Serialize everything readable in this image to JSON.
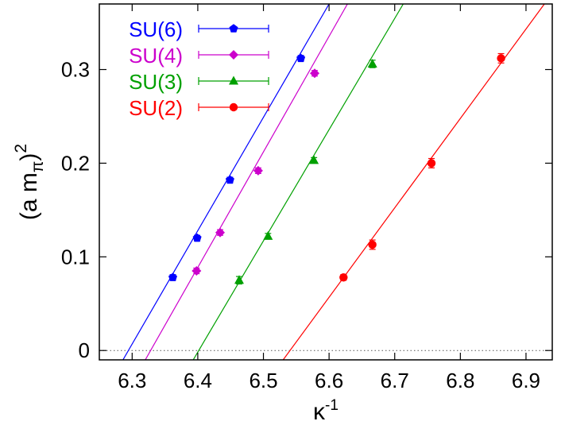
{
  "chart_data": {
    "type": "scatter",
    "xlabel": {
      "base": "κ",
      "sup": "-1"
    },
    "ylabel": {
      "pre": "(a m",
      "sub": "π",
      "post": ")",
      "sup": "2"
    },
    "xlim": [
      6.25,
      6.94
    ],
    "ylim": [
      -0.01,
      0.37
    ],
    "x_ticks": [
      6.3,
      6.4,
      6.5,
      6.6,
      6.7,
      6.8,
      6.9
    ],
    "x_tick_labels": [
      "6.3",
      "6.4",
      "6.5",
      "6.6",
      "6.7",
      "6.8",
      "6.9"
    ],
    "y_ticks": [
      0,
      0.1,
      0.2,
      0.3
    ],
    "y_tick_labels": [
      "0",
      "0.1",
      "0.2",
      "0.3"
    ],
    "zero_line": true,
    "legend_position": "top-left",
    "series": [
      {
        "name": "SU(6)",
        "color": "#0000ff",
        "marker": "pentagon",
        "x": [
          6.362,
          6.399,
          6.449,
          6.557
        ],
        "y": [
          0.078,
          0.12,
          0.182,
          0.312
        ],
        "yerr": [
          0.003,
          0.003,
          0.003,
          0.003
        ],
        "fit": {
          "x": [
            6.286,
            6.6
          ],
          "y": [
            -0.01,
            0.37
          ]
        }
      },
      {
        "name": "SU(4)",
        "color": "#cc00cc",
        "marker": "diamond",
        "x": [
          6.398,
          6.434,
          6.492,
          6.578
        ],
        "y": [
          0.085,
          0.126,
          0.192,
          0.296
        ],
        "yerr": [
          0.003,
          0.003,
          0.003,
          0.003
        ],
        "fit": {
          "x": [
            6.32,
            6.628
          ],
          "y": [
            -0.01,
            0.37
          ]
        }
      },
      {
        "name": "SU(3)",
        "color": "#00a000",
        "marker": "triangle",
        "x": [
          6.463,
          6.507,
          6.577,
          6.666
        ],
        "y": [
          0.075,
          0.122,
          0.203,
          0.306
        ],
        "yerr": [
          0.004,
          0.003,
          0.003,
          0.004
        ],
        "fit": {
          "x": [
            6.393,
            6.713
          ],
          "y": [
            -0.01,
            0.37
          ]
        }
      },
      {
        "name": "SU(2)",
        "color": "#ff0000",
        "marker": "circle",
        "x": [
          6.622,
          6.666,
          6.756,
          6.862
        ],
        "y": [
          0.078,
          0.113,
          0.2,
          0.312
        ],
        "yerr": [
          0.003,
          0.005,
          0.005,
          0.005
        ],
        "fit": {
          "x": [
            6.53,
            6.928
          ],
          "y": [
            -0.01,
            0.37
          ]
        }
      }
    ]
  }
}
